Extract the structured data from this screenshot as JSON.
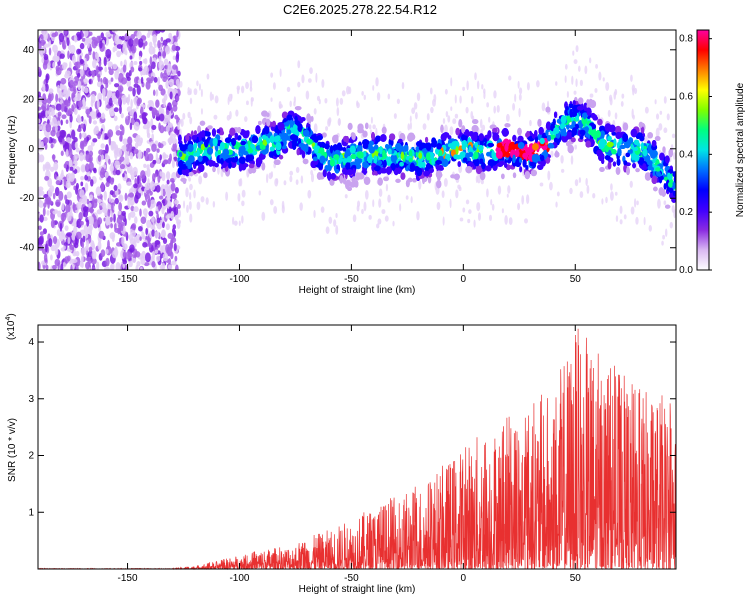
{
  "title": "C2E6.2025.278.22.54.R12",
  "chart_data": [
    {
      "type": "heatmap",
      "xlabel": "Height of straight line (km)",
      "ylabel": "Frequency (Hz)",
      "xlim": [
        -190,
        95
      ],
      "ylim": [
        -49,
        48
      ],
      "xticks": [
        -150,
        -100,
        -50,
        0,
        50
      ],
      "yticks": [
        -40,
        -20,
        0,
        20,
        40
      ],
      "colorbar": {
        "label": "Normalized spectral amplitude",
        "range": [
          0.0,
          0.83
        ],
        "ticks": [
          "0.0",
          "0.2",
          "0.4",
          "0.6",
          "0.8"
        ],
        "colormap": [
          "#ffffff",
          "#d9b8f2",
          "#8a2be2",
          "#3f00ff",
          "#0000ff",
          "#0070ff",
          "#00e5e5",
          "#00ff80",
          "#7fff00",
          "#ffff00",
          "#ff8000",
          "#ff0000",
          "#ff00a0"
        ]
      },
      "ridge": [
        {
          "x": -125,
          "f": -3
        },
        {
          "x": -115,
          "f": 0
        },
        {
          "x": -100,
          "f": -1
        },
        {
          "x": -90,
          "f": 2
        },
        {
          "x": -82,
          "f": 3
        },
        {
          "x": -78,
          "f": 8
        },
        {
          "x": -70,
          "f": 4
        },
        {
          "x": -60,
          "f": -5
        },
        {
          "x": -50,
          "f": -3
        },
        {
          "x": -40,
          "f": -2
        },
        {
          "x": -30,
          "f": -3
        },
        {
          "x": -20,
          "f": -4
        },
        {
          "x": -10,
          "f": -2
        },
        {
          "x": 0,
          "f": 0
        },
        {
          "x": 10,
          "f": -1
        },
        {
          "x": 20,
          "f": 0
        },
        {
          "x": 28,
          "f": -2
        },
        {
          "x": 35,
          "f": 0
        },
        {
          "x": 40,
          "f": 6
        },
        {
          "x": 47,
          "f": 12
        },
        {
          "x": 55,
          "f": 10
        },
        {
          "x": 62,
          "f": 2
        },
        {
          "x": 70,
          "f": 0
        },
        {
          "x": 80,
          "f": 0
        },
        {
          "x": 90,
          "f": -10
        },
        {
          "x": 95,
          "f": -15
        }
      ]
    },
    {
      "type": "line",
      "xlabel": "Height of straight line (km)",
      "ylabel": "SNR (10 * v/v)",
      "multiplier": "(x10^4)",
      "xlim": [
        -190,
        95
      ],
      "ylim": [
        0,
        4.3
      ],
      "xticks": [
        -150,
        -100,
        -50,
        0,
        50
      ],
      "yticks": [
        1,
        2,
        3,
        4
      ],
      "color": "#e83030",
      "envelope": [
        {
          "x": -190,
          "y": 0.01
        },
        {
          "x": -130,
          "y": 0.01
        },
        {
          "x": -120,
          "y": 0.05
        },
        {
          "x": -110,
          "y": 0.15
        },
        {
          "x": -100,
          "y": 0.25
        },
        {
          "x": -90,
          "y": 0.35
        },
        {
          "x": -80,
          "y": 0.4
        },
        {
          "x": -70,
          "y": 0.55
        },
        {
          "x": -60,
          "y": 0.7
        },
        {
          "x": -50,
          "y": 0.9
        },
        {
          "x": -40,
          "y": 1.1
        },
        {
          "x": -30,
          "y": 1.3
        },
        {
          "x": -20,
          "y": 1.5
        },
        {
          "x": -10,
          "y": 1.8
        },
        {
          "x": 0,
          "y": 2.2
        },
        {
          "x": 10,
          "y": 2.5
        },
        {
          "x": 20,
          "y": 2.7
        },
        {
          "x": 30,
          "y": 3.0
        },
        {
          "x": 40,
          "y": 3.2
        },
        {
          "x": 50,
          "y": 4.3
        },
        {
          "x": 60,
          "y": 3.9
        },
        {
          "x": 70,
          "y": 3.5
        },
        {
          "x": 80,
          "y": 3.2
        },
        {
          "x": 95,
          "y": 3.0
        }
      ]
    }
  ]
}
